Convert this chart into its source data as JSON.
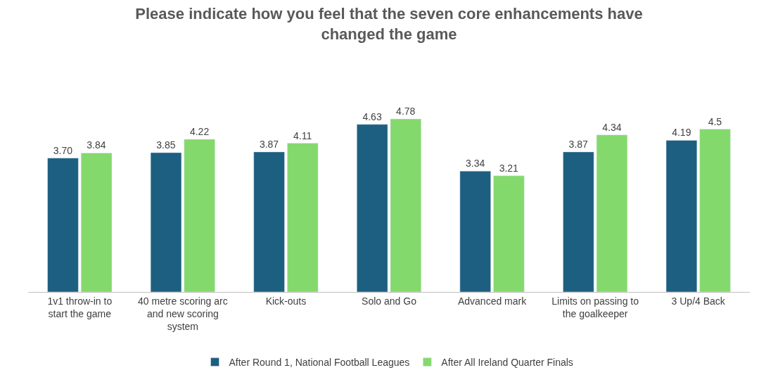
{
  "chart_data": {
    "type": "bar",
    "title": "Please indicate how you feel that the seven core enhancements have changed the game",
    "categories": [
      "1v1 throw-in to start the game",
      "40 metre scoring arc and new scoring system",
      "Kick-outs",
      "Solo and Go",
      "Advanced mark",
      "Limits on passing to the goalkeeper",
      "3 Up/4 Back"
    ],
    "series": [
      {
        "name": "After Round 1, National Football Leagues",
        "color": "#1d5f80",
        "values": [
          3.7,
          3.85,
          3.87,
          4.63,
          3.34,
          3.87,
          4.19
        ],
        "value_labels": [
          "3.70",
          "3.85",
          "3.87",
          "4.63",
          "3.34",
          "3.87",
          "4.19"
        ]
      },
      {
        "name": "After All Ireland Quarter Finals",
        "color": "#84d96c",
        "values": [
          3.84,
          4.22,
          4.11,
          4.78,
          3.21,
          4.34,
          4.5
        ],
        "value_labels": [
          "3.84",
          "4.22",
          "4.11",
          "4.78",
          "3.21",
          "4.34",
          "4.5"
        ]
      }
    ],
    "legend": "bottom"
  }
}
